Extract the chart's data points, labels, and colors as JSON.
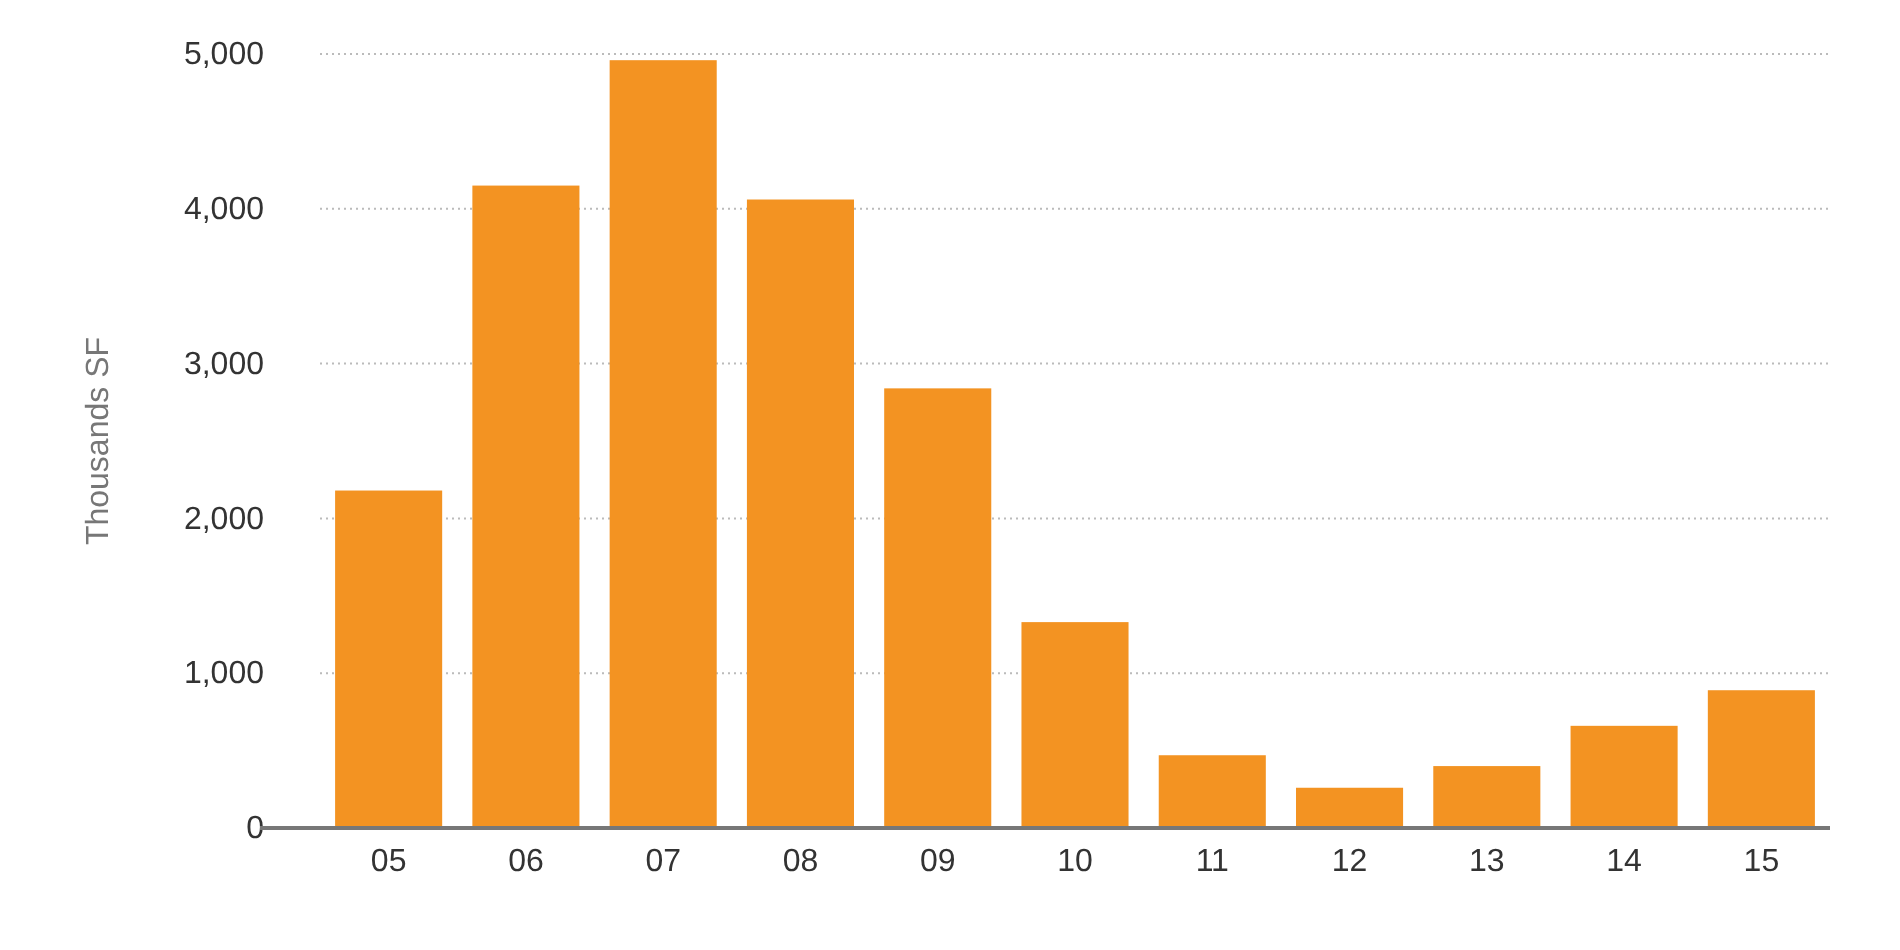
{
  "chart_data": {
    "type": "bar",
    "ylabel": "Thousands SF",
    "categories": [
      "05",
      "06",
      "07",
      "08",
      "09",
      "10",
      "11",
      "12",
      "13",
      "14",
      "15"
    ],
    "values": [
      2180,
      4150,
      4960,
      4060,
      2840,
      1330,
      470,
      260,
      400,
      660,
      890
    ],
    "color": "#f39322",
    "ylim": [
      0,
      5000
    ],
    "yticks": [
      {
        "value": 0,
        "label": "0"
      },
      {
        "value": 1000,
        "label": "1,000"
      },
      {
        "value": 2000,
        "label": "2,000"
      },
      {
        "value": 3000,
        "label": "3,000"
      },
      {
        "value": 4000,
        "label": "4,000"
      },
      {
        "value": 5000,
        "label": "5,000"
      }
    ],
    "grid": "y"
  }
}
